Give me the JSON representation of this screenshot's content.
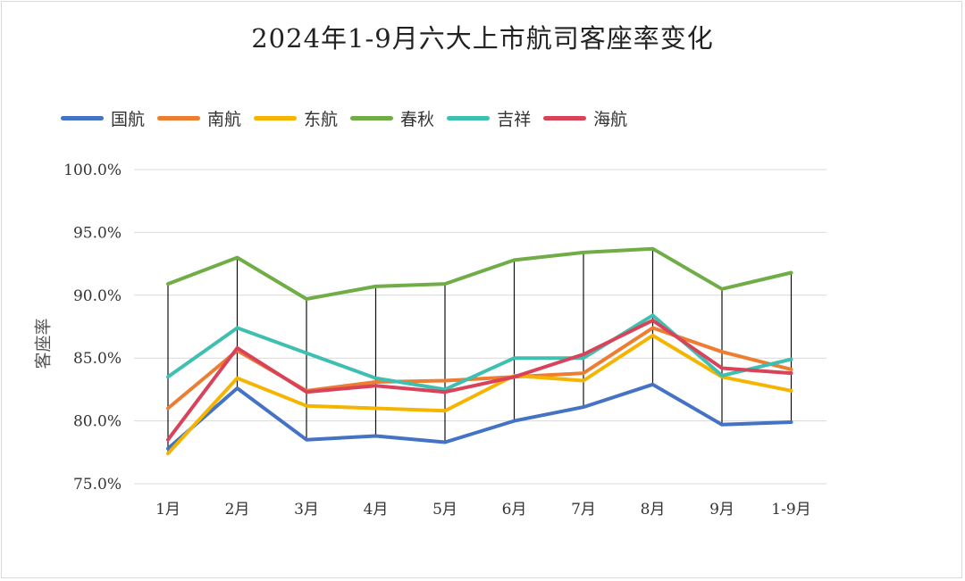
{
  "chart_data": {
    "type": "line",
    "title": "2024年1-9月六大上市航司客座率变化",
    "ylabel": "客座率",
    "xlabel": "",
    "categories": [
      "1月",
      "2月",
      "3月",
      "4月",
      "5月",
      "6月",
      "7月",
      "8月",
      "9月",
      "1-9月"
    ],
    "ylim": [
      75,
      100
    ],
    "yticks": [
      75,
      80,
      85,
      90,
      95,
      100
    ],
    "ytick_labels": [
      "75.0%",
      "80.0%",
      "85.0%",
      "90.0%",
      "95.0%",
      "100.0%"
    ],
    "grid": true,
    "drop_lines": true,
    "legend_position": "top-left",
    "series": [
      {
        "name": "国航",
        "color": "#4472C4",
        "values": [
          77.8,
          82.6,
          78.5,
          78.8,
          78.3,
          80.0,
          81.1,
          82.9,
          79.7,
          79.9
        ]
      },
      {
        "name": "南航",
        "color": "#ED7D31",
        "values": [
          81.0,
          85.6,
          82.4,
          83.1,
          83.2,
          83.5,
          83.8,
          87.4,
          85.5,
          84.1
        ]
      },
      {
        "name": "东航",
        "color": "#F4B400",
        "values": [
          77.4,
          83.4,
          81.2,
          81.0,
          80.8,
          83.6,
          83.2,
          86.8,
          83.5,
          82.4
        ]
      },
      {
        "name": "春秋",
        "color": "#70AD47",
        "values": [
          90.9,
          93.0,
          89.7,
          90.7,
          90.9,
          92.8,
          93.4,
          93.7,
          90.5,
          91.8
        ]
      },
      {
        "name": "吉祥",
        "color": "#3FBFB0",
        "values": [
          83.5,
          87.4,
          85.4,
          83.4,
          82.5,
          85.0,
          85.0,
          88.4,
          83.6,
          84.9
        ]
      },
      {
        "name": "海航",
        "color": "#D9435A",
        "values": [
          78.5,
          85.8,
          82.3,
          82.8,
          82.3,
          83.5,
          85.3,
          88.0,
          84.2,
          83.8
        ]
      }
    ]
  }
}
